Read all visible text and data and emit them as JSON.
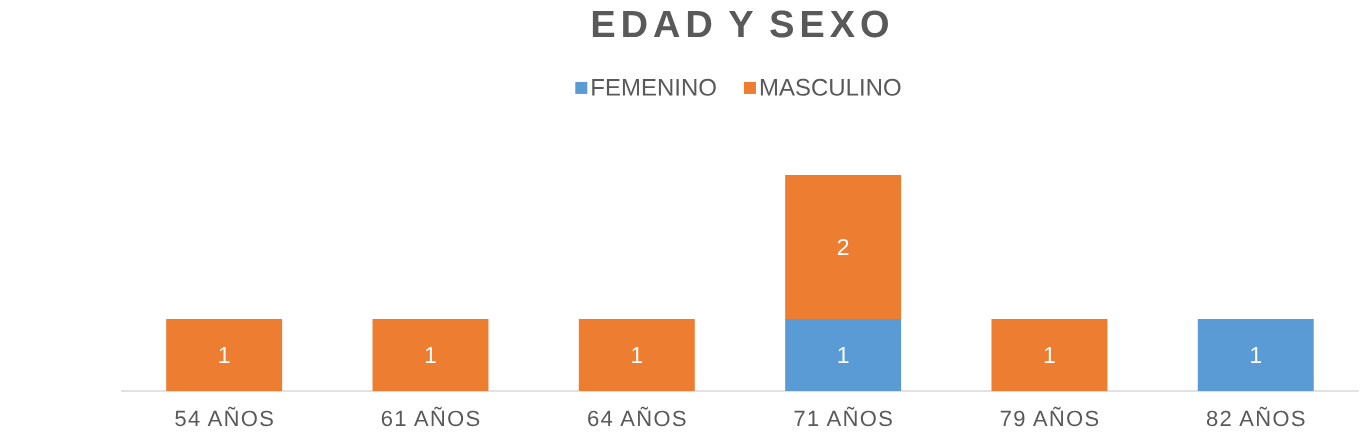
{
  "chart_data": {
    "type": "bar",
    "title": "EDAD Y SEXO",
    "categories": [
      "54 AÑOS",
      "61 AÑOS",
      "64 AÑOS",
      "71 AÑOS",
      "79 AÑOS",
      "82 AÑOS"
    ],
    "stacked": true,
    "data_labels": true,
    "legend": "top",
    "series": [
      {
        "name": "FEMENINO",
        "color": "#5b9bd5",
        "values": [
          null,
          null,
          null,
          1,
          null,
          1
        ]
      },
      {
        "name": "MASCULINO",
        "color": "#ed7d31",
        "values": [
          1,
          1,
          1,
          2,
          1,
          null
        ]
      }
    ]
  }
}
